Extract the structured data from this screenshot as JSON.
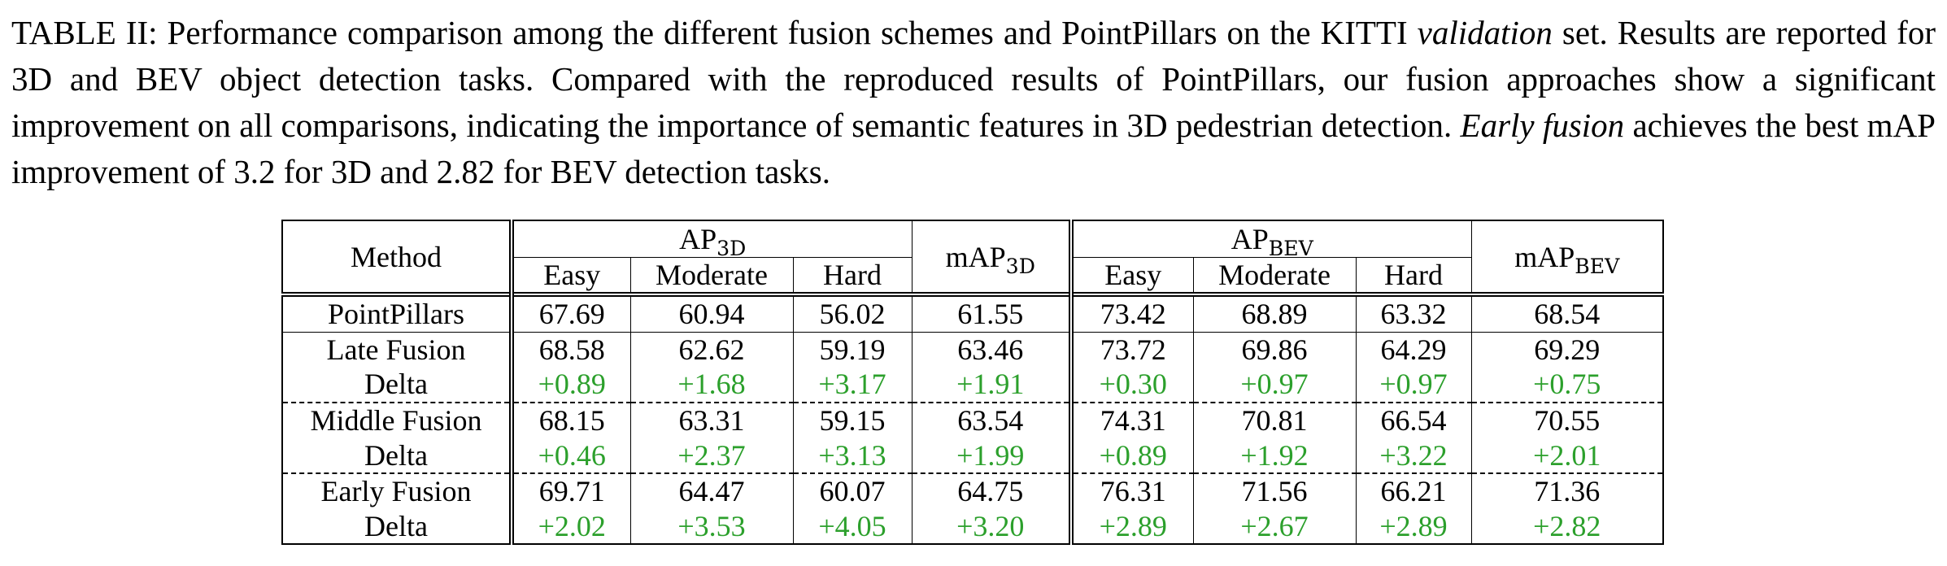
{
  "caption": {
    "label": "TABLE II: Performance comparison among the different fusion schemes and PointPillars on the KITTI ",
    "italic1": "validation",
    "part2": " set. Results are reported for 3D and BEV object detection tasks. Compared with the reproduced results of PointPillars, our fusion approaches show a significant improvement on all comparisons, indicating the importance of semantic features in 3D pedestrian detection. ",
    "italic2": "Early fusion",
    "part3": " achieves the best mAP improvement of 3.2 for 3D and 2.82 for BEV detection tasks."
  },
  "table": {
    "method_header": "Method",
    "ap3d_main": "AP",
    "ap3d_sub": "3D",
    "map3d_main": "mAP",
    "map3d_sub": "3D",
    "apbev_main": "AP",
    "apbev_sub": "BEV",
    "mapbev_main": "mAP",
    "mapbev_sub": "BEV",
    "sub_headers": {
      "easy": "Easy",
      "moderate": "Moderate",
      "hard": "Hard"
    },
    "rows": [
      {
        "method": "PointPillars",
        "v": [
          "67.69",
          "60.94",
          "56.02",
          "61.55",
          "73.42",
          "68.89",
          "63.32",
          "68.54"
        ]
      },
      {
        "method": "Late Fusion",
        "v": [
          "68.58",
          "62.62",
          "59.19",
          "63.46",
          "73.72",
          "69.86",
          "64.29",
          "69.29"
        ]
      },
      {
        "method": "Delta",
        "v": [
          "+0.89",
          "+1.68",
          "+3.17",
          "+1.91",
          "+0.30",
          "+0.97",
          "+0.97",
          "+0.75"
        ]
      },
      {
        "method": "Middle Fusion",
        "v": [
          "68.15",
          "63.31",
          "59.15",
          "63.54",
          "74.31",
          "70.81",
          "66.54",
          "70.55"
        ]
      },
      {
        "method": "Delta",
        "v": [
          "+0.46",
          "+2.37",
          "+3.13",
          "+1.99",
          "+0.89",
          "+1.92",
          "+3.22",
          "+2.01"
        ]
      },
      {
        "method": "Early Fusion",
        "v": [
          "69.71",
          "64.47",
          "60.07",
          "64.75",
          "76.31",
          "71.56",
          "66.21",
          "71.36"
        ]
      },
      {
        "method": "Delta",
        "v": [
          "+2.02",
          "+3.53",
          "+4.05",
          "+3.20",
          "+2.89",
          "+2.67",
          "+2.89",
          "+2.82"
        ]
      }
    ],
    "colors": {
      "delta_green": "#2ca02c",
      "text": "#000000"
    }
  }
}
